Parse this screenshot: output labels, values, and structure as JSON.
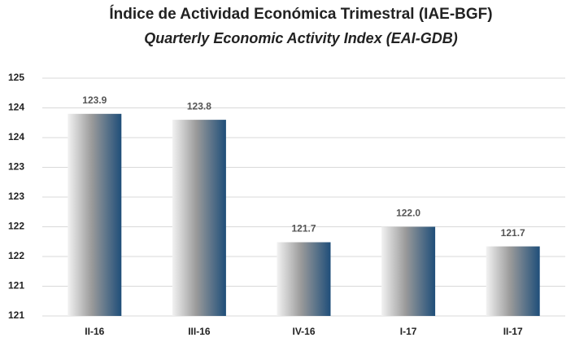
{
  "chart_data": {
    "type": "bar",
    "title": "Índice de Actividad Económica Trimestral (IAE-BGF)",
    "subtitle": "Quarterly Economic Activity Index (EAI-GDB)",
    "categories": [
      "II-16",
      "III-16",
      "IV-16",
      "I-17",
      "II-17"
    ],
    "values": [
      123.9,
      123.8,
      121.74,
      122.0,
      121.67
    ],
    "value_labels": [
      "123.9",
      "123.8",
      "121.7",
      "122.0",
      "121.7"
    ],
    "color": [
      "#f2f2f2",
      "#1f4e79"
    ],
    "ylim": [
      120.5,
      124.5
    ],
    "yticks": [
      {
        "value": 120.5,
        "label": "121"
      },
      {
        "value": 121,
        "label": "121"
      },
      {
        "value": 121.5,
        "label": "122"
      },
      {
        "value": 122,
        "label": "122"
      },
      {
        "value": 122.5,
        "label": "123"
      },
      {
        "value": 123,
        "label": "123"
      },
      {
        "value": 123.5,
        "label": "124"
      },
      {
        "value": 124,
        "label": "124"
      },
      {
        "value": 124.5,
        "label": "125"
      }
    ],
    "grid": true
  }
}
